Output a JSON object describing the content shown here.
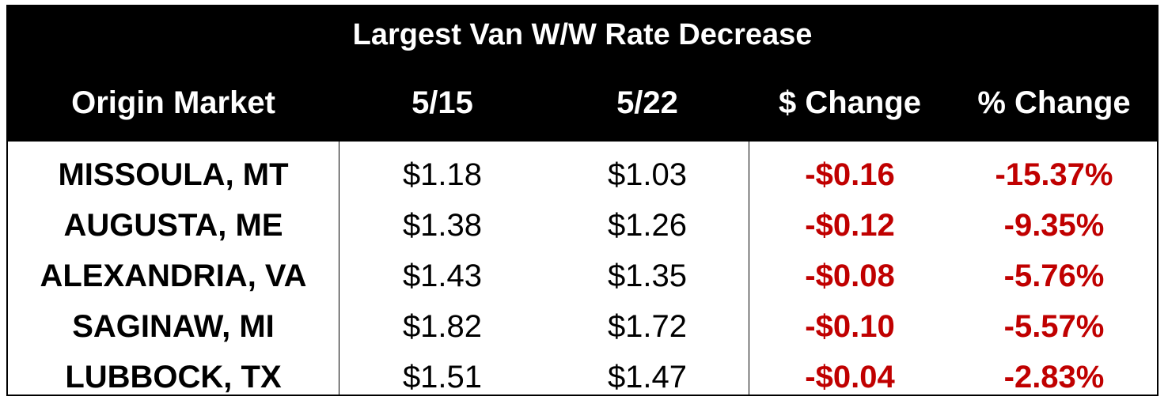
{
  "colors": {
    "header_bg": "#000000",
    "header_text": "#ffffff",
    "negative": "#c00000",
    "body_text": "#000000"
  },
  "chart_data": {
    "type": "table",
    "title": "Largest Van W/W Rate Decrease",
    "columns": [
      "Origin Market",
      "5/15",
      "5/22",
      "$ Change",
      "% Change"
    ],
    "rows": [
      {
        "market": "MISSOULA, MT",
        "prev": "$1.18",
        "curr": "$1.03",
        "dollar_change": "-$0.16",
        "pct_change": "-15.37%"
      },
      {
        "market": "AUGUSTA, ME",
        "prev": "$1.38",
        "curr": "$1.26",
        "dollar_change": "-$0.12",
        "pct_change": "-9.35%"
      },
      {
        "market": "ALEXANDRIA, VA",
        "prev": "$1.43",
        "curr": "$1.35",
        "dollar_change": "-$0.08",
        "pct_change": "-5.76%"
      },
      {
        "market": "SAGINAW, MI",
        "prev": "$1.82",
        "curr": "$1.72",
        "dollar_change": "-$0.10",
        "pct_change": "-5.57%"
      },
      {
        "market": "LUBBOCK, TX",
        "prev": "$1.51",
        "curr": "$1.47",
        "dollar_change": "-$0.04",
        "pct_change": "-2.83%"
      }
    ]
  }
}
